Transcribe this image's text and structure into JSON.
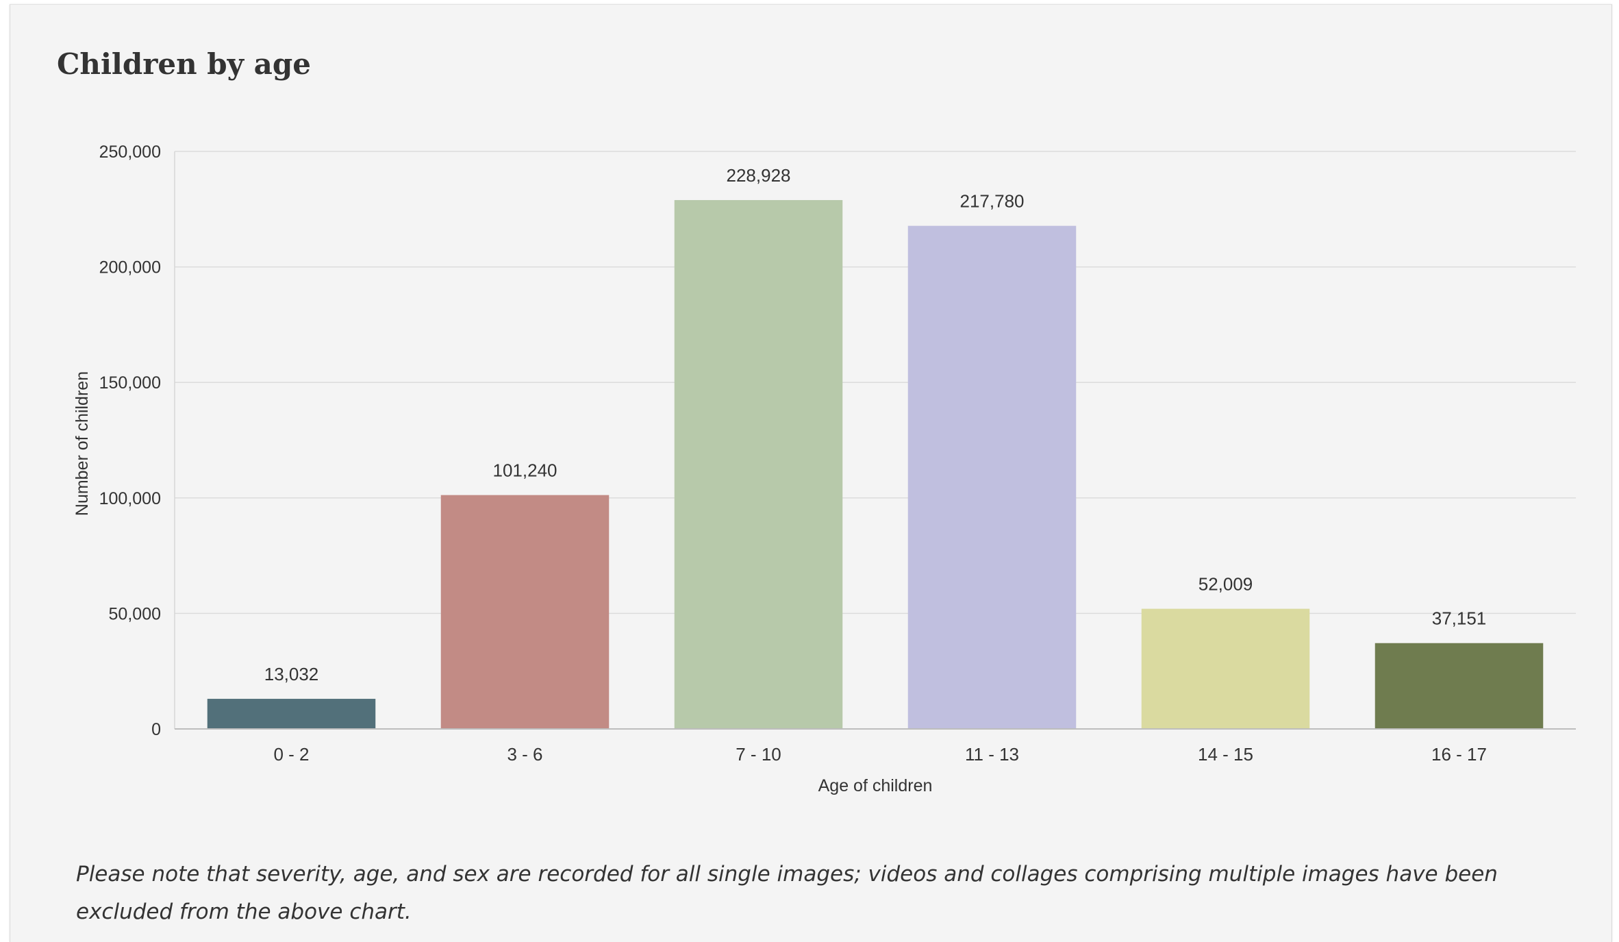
{
  "card": {
    "title": "Children by age",
    "note": "Please note that severity, age, and sex are recorded for all single images; videos and collages comprising multiple images have been excluded from the above chart."
  },
  "chart_data": {
    "type": "bar",
    "title": "Children by age",
    "xlabel": "Age of children",
    "ylabel": "Number of children",
    "categories": [
      "0 - 2",
      "3 - 6",
      "7 - 10",
      "11 - 13",
      "14 - 15",
      "16 - 17"
    ],
    "values": [
      13032,
      101240,
      228928,
      217780,
      52009,
      37151
    ],
    "value_labels": [
      "13,032",
      "101,240",
      "228,928",
      "217,780",
      "52,009",
      "37,151"
    ],
    "colors": [
      "#52707a",
      "#c28b85",
      "#b7c9aa",
      "#c0bfdf",
      "#dadaa0",
      "#6f7c4f"
    ],
    "ylim": [
      0,
      250000
    ],
    "yticks": [
      0,
      50000,
      100000,
      150000,
      200000,
      250000
    ],
    "ytick_labels": [
      "0",
      "50,000",
      "100,000",
      "150,000",
      "200,000",
      "250,000"
    ],
    "grid": true,
    "legend": "none"
  }
}
